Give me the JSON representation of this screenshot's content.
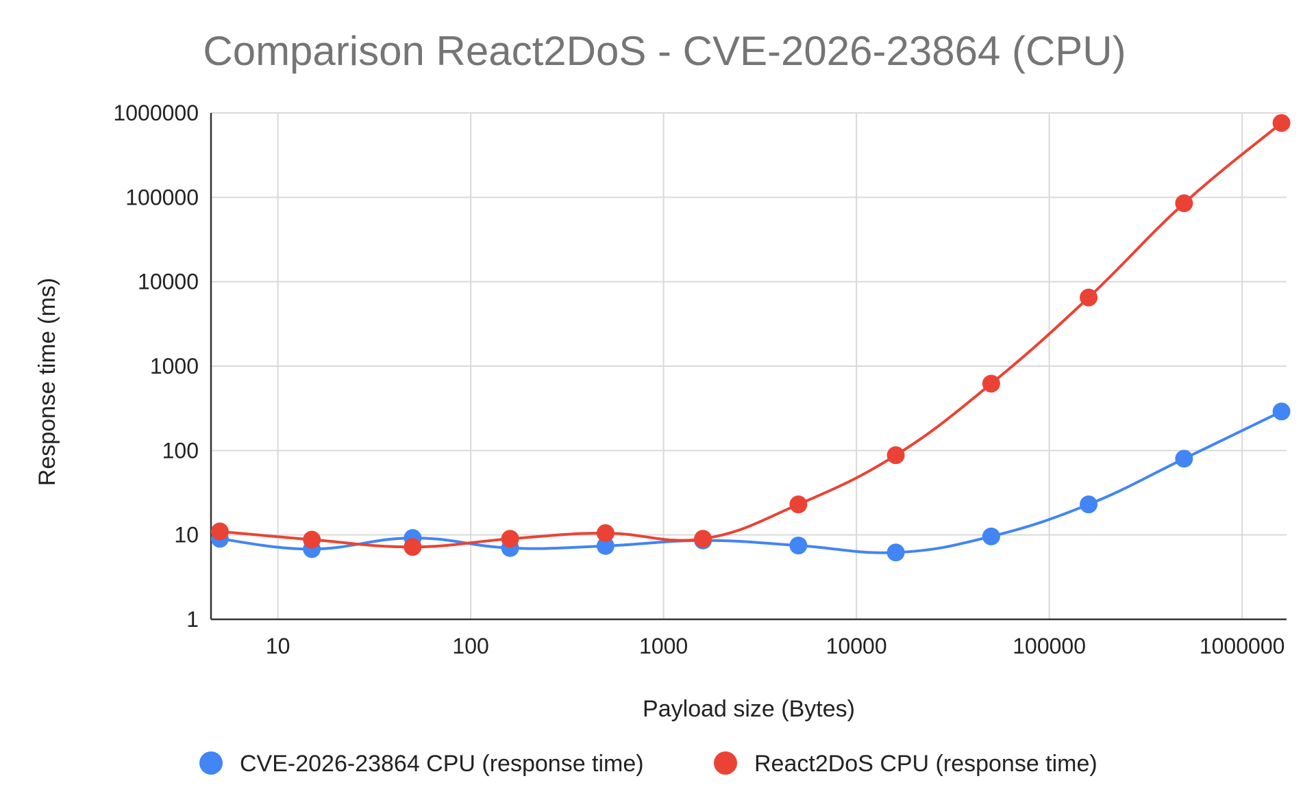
{
  "chart_data": {
    "type": "line",
    "title": "Comparison React2DoS - CVE-2026-23864 (CPU)",
    "xlabel": "Payload size (Bytes)",
    "ylabel": "Response time (ms)",
    "xscale": "log",
    "yscale": "log",
    "xlim": [
      4.5,
      1700000
    ],
    "ylim": [
      1,
      1000000
    ],
    "x_ticks": [
      10,
      100,
      1000,
      10000,
      100000,
      1000000
    ],
    "x_tick_labels": [
      "10",
      "100",
      "1000",
      "10000",
      "100000",
      "1000000"
    ],
    "y_ticks": [
      1,
      10,
      100,
      1000,
      10000,
      100000,
      1000000
    ],
    "y_tick_labels": [
      "1",
      "10",
      "100",
      "1000",
      "10000",
      "100000",
      "1000000"
    ],
    "grid": true,
    "legend_position": "bottom",
    "x": [
      5,
      15,
      50,
      160,
      500,
      1600,
      5000,
      16000,
      50000,
      160000,
      500000,
      1600000
    ],
    "series": [
      {
        "name": "CVE-2026-23864 CPU (response time)",
        "color": "#4285f4",
        "values": [
          9,
          6.8,
          9.2,
          7,
          7.4,
          8.6,
          7.5,
          6.2,
          9.6,
          23,
          80,
          290
        ]
      },
      {
        "name": "React2DoS CPU (response time)",
        "color": "#ea4335",
        "values": [
          11,
          8.8,
          7.2,
          9,
          10.5,
          9,
          23,
          88,
          620,
          6500,
          85000,
          760000
        ]
      }
    ]
  }
}
